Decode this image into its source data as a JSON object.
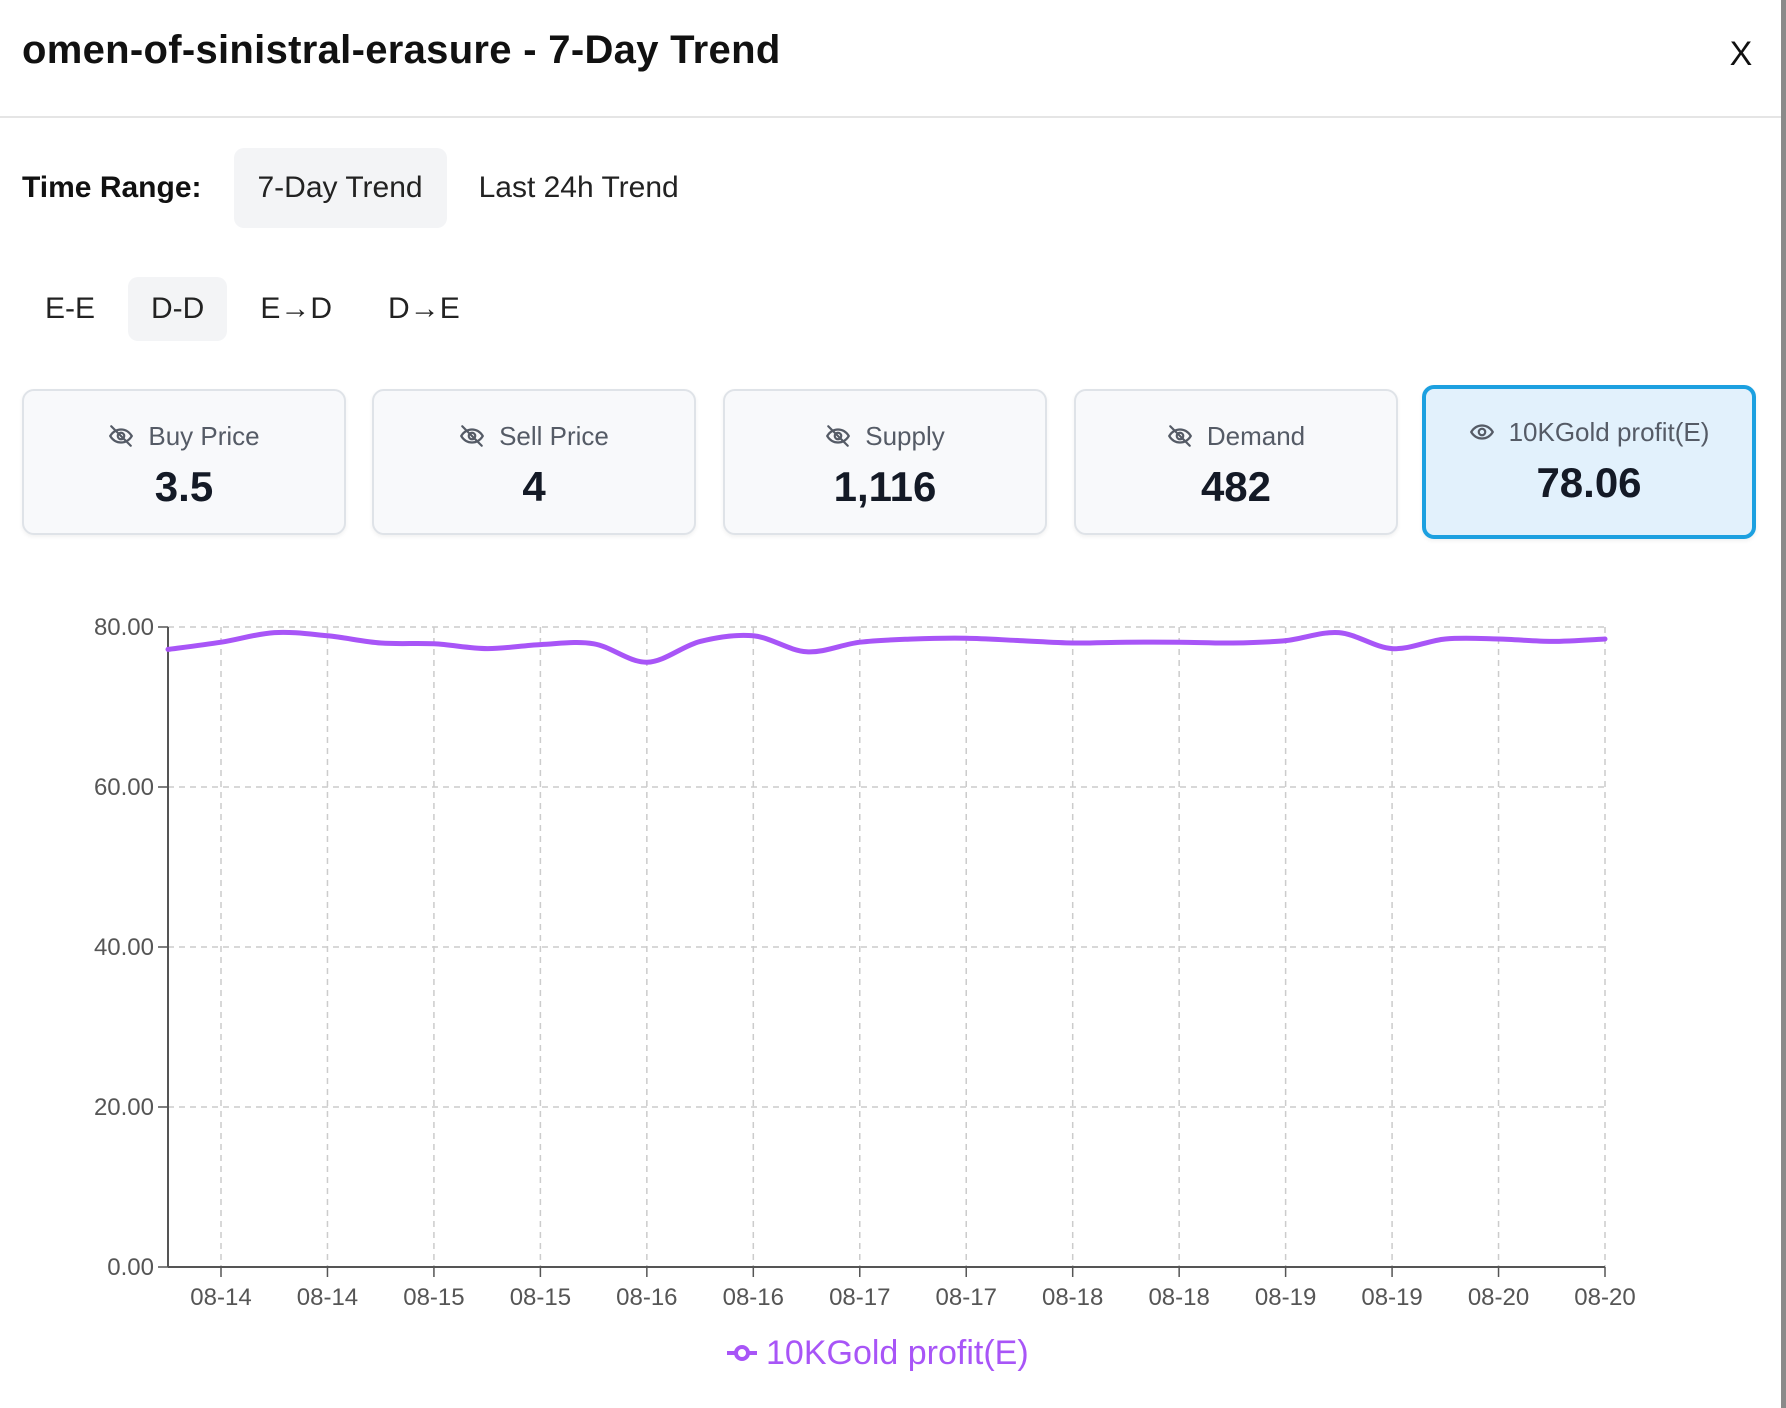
{
  "header": {
    "title": "omen-of-sinistral-erasure - 7-Day Trend",
    "close_label": "X"
  },
  "time_range": {
    "label": "Time Range:",
    "options": [
      {
        "label": "7-Day Trend",
        "active": true
      },
      {
        "label": "Last 24h Trend",
        "active": false
      }
    ]
  },
  "modes": [
    {
      "label": "E-E",
      "active": false
    },
    {
      "label": "D-D",
      "active": true
    },
    {
      "label": "E→D",
      "active": false
    },
    {
      "label": "D→E",
      "active": false
    }
  ],
  "cards": [
    {
      "label": "Buy Price",
      "value": "3.5",
      "icon": "eye-off-icon",
      "active": false
    },
    {
      "label": "Sell Price",
      "value": "4",
      "icon": "eye-off-icon",
      "active": false
    },
    {
      "label": "Supply",
      "value": "1,116",
      "icon": "eye-off-icon",
      "active": false
    },
    {
      "label": "Demand",
      "value": "482",
      "icon": "eye-off-icon",
      "active": false
    },
    {
      "label": "10KGold profit(E)",
      "value": "78.06",
      "icon": "eye-icon",
      "active": true
    }
  ],
  "colors": {
    "series": "#a855f7",
    "active_border": "#1ca0e0",
    "active_bg": "#e2f1fc",
    "grid": "#cccccc"
  },
  "chart_data": {
    "type": "line",
    "ylim": [
      0,
      80
    ],
    "y_ticks": [
      "0.00",
      "20.00",
      "40.00",
      "60.00",
      "80.00"
    ],
    "x_tick_labels": [
      "08-14",
      "08-14",
      "08-15",
      "08-15",
      "08-16",
      "08-16",
      "08-17",
      "08-17",
      "08-18",
      "08-18",
      "08-19",
      "08-19",
      "08-20",
      "08-20"
    ],
    "grid": true,
    "legend": "bottom-center",
    "series": [
      {
        "name": "10KGold profit(E)",
        "values": [
          77.2,
          78.1,
          79.3,
          78.9,
          78.0,
          77.9,
          77.3,
          77.8,
          77.9,
          75.6,
          78.2,
          78.9,
          76.9,
          78.1,
          78.5,
          78.6,
          78.3,
          78.0,
          78.1,
          78.1,
          78.0,
          78.3,
          79.3,
          77.3,
          78.5,
          78.5,
          78.2,
          78.5
        ]
      }
    ]
  }
}
